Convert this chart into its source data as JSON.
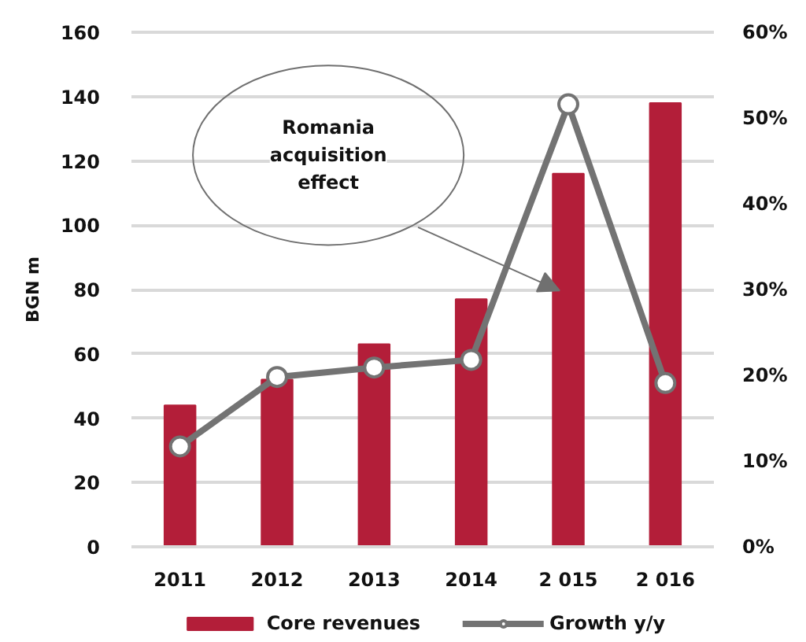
{
  "chart_data": {
    "type": "bar",
    "categories": [
      "2011",
      "2012",
      "2013",
      "2014",
      "2 015",
      "2 016"
    ],
    "series": [
      {
        "name": "Core revenues",
        "color": "#b31e39",
        "values": [
          44,
          52,
          63,
          77,
          116,
          138
        ]
      },
      {
        "name": "Growth y/y",
        "type": "line",
        "axis": "y2",
        "color": "#737373",
        "marker": "circle",
        "values": [
          11.7,
          19.8,
          20.9,
          21.8,
          51.6,
          19.1
        ]
      }
    ],
    "ylim": [
      0,
      160
    ],
    "yticks": [
      0,
      20,
      40,
      60,
      80,
      100,
      120,
      140,
      160
    ],
    "y2lim": [
      0,
      60
    ],
    "y2ticks": [
      {
        "value": 0,
        "label": "0%"
      },
      {
        "value": 10,
        "label": "10%"
      },
      {
        "value": 20,
        "label": "20%"
      },
      {
        "value": 30,
        "label": "30%"
      },
      {
        "value": 40,
        "label": "40%"
      },
      {
        "value": 50,
        "label": "50%"
      },
      {
        "value": 60,
        "label": "60%"
      }
    ],
    "ylabel": "BGN m",
    "grid": "y",
    "legend": "bottom",
    "annotations": [
      "Romania acquisition effect"
    ]
  }
}
